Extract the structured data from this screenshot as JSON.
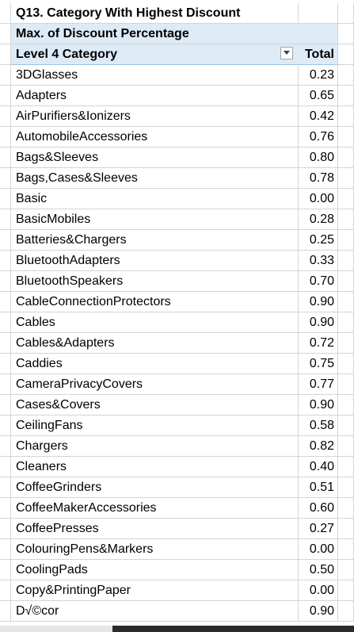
{
  "title": "Q13. Category With Highest Discount",
  "pivot": {
    "values_label": "Max. of Discount Percentage",
    "row_header": "Level 4 Category",
    "total_header": "Total"
  },
  "rows": [
    {
      "category": "3DGlasses",
      "value": "0.23"
    },
    {
      "category": "Adapters",
      "value": "0.65"
    },
    {
      "category": "AirPurifiers&Ionizers",
      "value": "0.42"
    },
    {
      "category": "AutomobileAccessories",
      "value": "0.76"
    },
    {
      "category": "Bags&Sleeves",
      "value": "0.80"
    },
    {
      "category": "Bags,Cases&Sleeves",
      "value": "0.78"
    },
    {
      "category": "Basic",
      "value": "0.00"
    },
    {
      "category": "BasicMobiles",
      "value": "0.28"
    },
    {
      "category": "Batteries&Chargers",
      "value": "0.25"
    },
    {
      "category": "BluetoothAdapters",
      "value": "0.33"
    },
    {
      "category": "BluetoothSpeakers",
      "value": "0.70"
    },
    {
      "category": "CableConnectionProtectors",
      "value": "0.90"
    },
    {
      "category": "Cables",
      "value": "0.90"
    },
    {
      "category": "Cables&Adapters",
      "value": "0.72"
    },
    {
      "category": "Caddies",
      "value": "0.75"
    },
    {
      "category": "CameraPrivacyCovers",
      "value": "0.77"
    },
    {
      "category": "Cases&Covers",
      "value": "0.90"
    },
    {
      "category": "CeilingFans",
      "value": "0.58"
    },
    {
      "category": "Chargers",
      "value": "0.82"
    },
    {
      "category": "Cleaners",
      "value": "0.40"
    },
    {
      "category": "CoffeeGrinders",
      "value": "0.51"
    },
    {
      "category": "CoffeeMakerAccessories",
      "value": "0.60"
    },
    {
      "category": "CoffeePresses",
      "value": "0.27"
    },
    {
      "category": "ColouringPens&Markers",
      "value": "0.00"
    },
    {
      "category": "CoolingPads",
      "value": "0.50"
    },
    {
      "category": "Copy&PrintingPaper",
      "value": "0.00"
    },
    {
      "category": "D√©cor",
      "value": "0.90"
    }
  ],
  "icons": {
    "filter": "dropdown-filter-icon"
  },
  "colors": {
    "pivot_header_bg": "#ddebf7",
    "gridline": "#d4d4d4"
  }
}
